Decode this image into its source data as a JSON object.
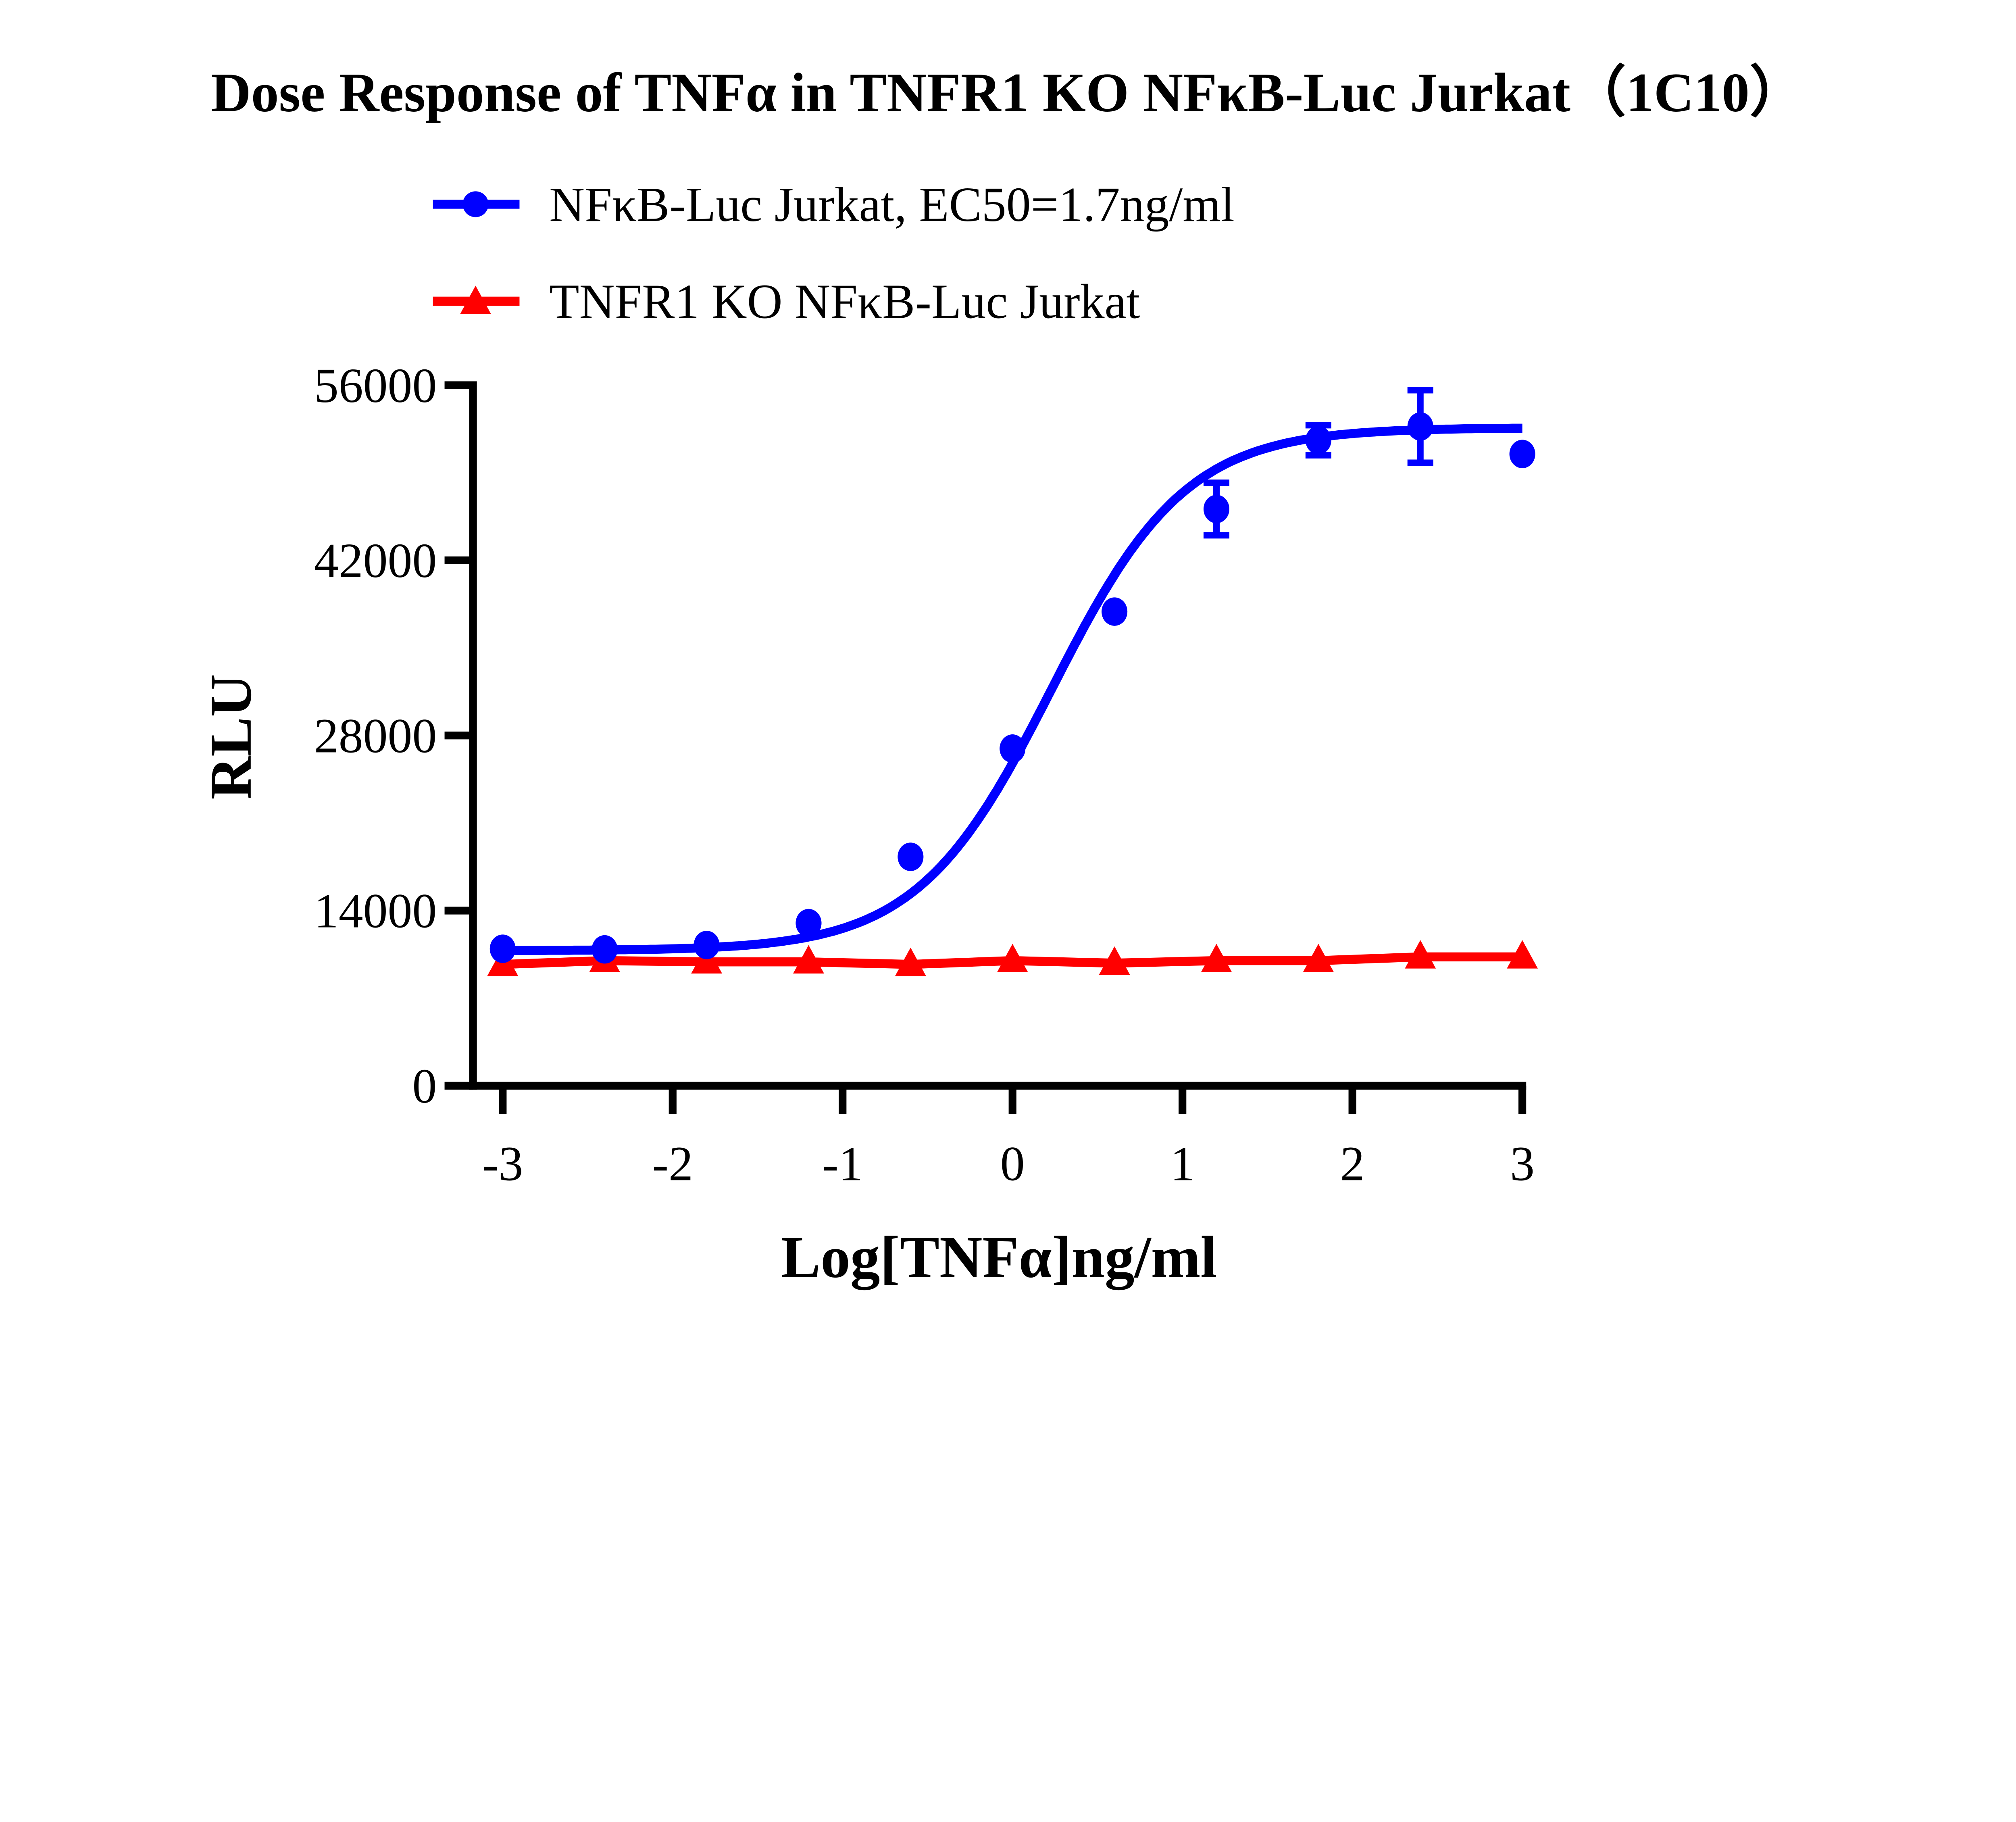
{
  "chart_data": {
    "type": "line",
    "title": "Dose Response of  TNFα in TNFR1 KO NFκB-Luc Jurkat（1C10）",
    "xlabel": "Log[TNFα]ng/ml",
    "ylabel": "RLU",
    "xlim": [
      -3,
      3
    ],
    "ylim": [
      0,
      56000
    ],
    "x_ticks": [
      "-3",
      "-2",
      "-1",
      "0",
      "1",
      "2",
      "3"
    ],
    "y_ticks": [
      "0",
      "14000",
      "28000",
      "42000",
      "56000"
    ],
    "grid": false,
    "legend_position": "top",
    "x": [
      -3,
      -2.4,
      -1.8,
      -1.2,
      -0.6,
      0,
      0.6,
      1.2,
      1.8,
      2.4,
      3
    ],
    "series": [
      {
        "name": "NFκB-Luc Jurkat, EC50=1.7ng/ml",
        "color": "#0000ff",
        "marker": "circle",
        "values": [
          10950,
          10900,
          11250,
          13000,
          18300,
          26950,
          37900,
          46100,
          51600,
          52700,
          50500
        ],
        "error": [
          0,
          0,
          0,
          0,
          0,
          0,
          0,
          2100,
          1200,
          2900,
          0
        ],
        "fit": {
          "model": "4PL",
          "bottom": 10800,
          "top": 52600,
          "logEC50": 0.23,
          "hill": 1.1
        }
      },
      {
        "name": "TNFR1 KO NFκB-Luc Jurkat",
        "color": "#ff0000",
        "marker": "triangle",
        "values": [
          9700,
          10000,
          9900,
          9900,
          9700,
          10000,
          9800,
          10000,
          10000,
          10300,
          10300
        ]
      }
    ]
  }
}
